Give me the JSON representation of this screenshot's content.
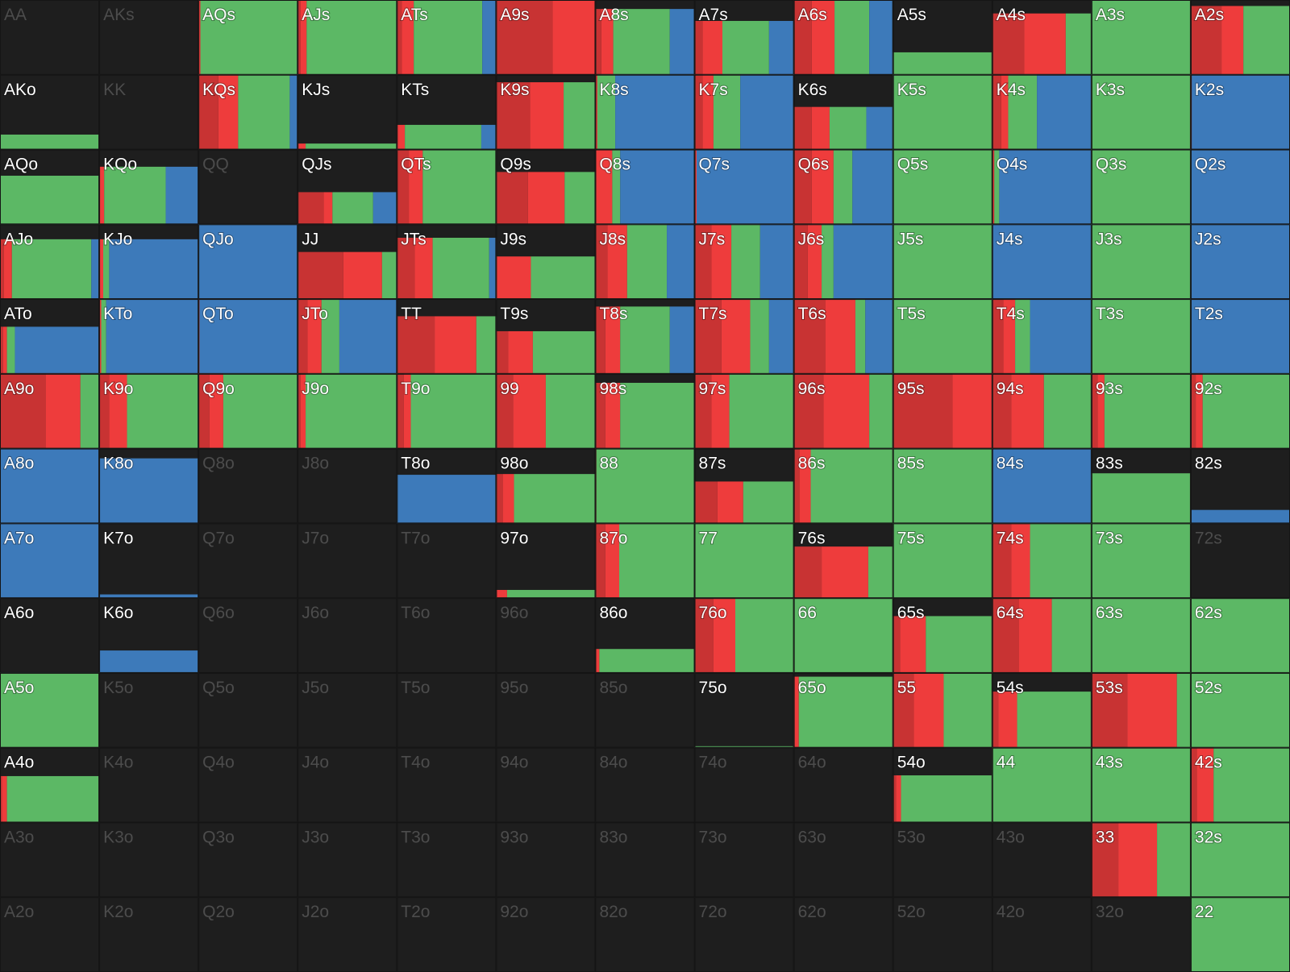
{
  "grid": {
    "colors": [
      "#c83333",
      "#ee3c3c",
      "#5cb865",
      "#3d7aba"
    ],
    "cells": [
      [
        [
          "AA",
          0,
          0,
          0,
          0,
          0
        ],
        [
          "AKs",
          0,
          0,
          0,
          0,
          0
        ],
        [
          "AQs",
          100,
          0,
          2,
          98,
          0
        ],
        [
          "AJs",
          100,
          3,
          6,
          91,
          0
        ],
        [
          "ATs",
          100,
          5,
          12,
          69,
          14
        ],
        [
          "A9s",
          100,
          57,
          43,
          0,
          0
        ],
        [
          "A8s",
          88,
          6,
          12,
          57,
          25
        ],
        [
          "A7s",
          72,
          8,
          20,
          47,
          25
        ],
        [
          "A6s",
          100,
          18,
          23,
          35,
          24
        ],
        [
          "A5s",
          30,
          0,
          0,
          100,
          0
        ],
        [
          "A4s",
          82,
          32,
          42,
          26,
          0
        ],
        [
          "A3s",
          100,
          0,
          0,
          100,
          0
        ],
        [
          "A2s",
          92,
          31,
          22,
          47,
          0
        ]
      ],
      [
        [
          "AKo",
          20,
          0,
          0,
          100,
          0
        ],
        [
          "KK",
          0,
          0,
          0,
          0,
          0
        ],
        [
          "KQs",
          100,
          20,
          20,
          52,
          8
        ],
        [
          "KJs",
          8,
          0,
          8,
          92,
          0
        ],
        [
          "KTs",
          33,
          0,
          8,
          77,
          15
        ],
        [
          "K9s",
          90,
          34,
          34,
          32,
          0
        ],
        [
          "K8s",
          100,
          0,
          2,
          18,
          80
        ],
        [
          "K7s",
          100,
          8,
          11,
          27,
          54
        ],
        [
          "K6s",
          57,
          18,
          18,
          37,
          27
        ],
        [
          "K5s",
          100,
          0,
          0,
          100,
          0
        ],
        [
          "K4s",
          100,
          9,
          7,
          29,
          55
        ],
        [
          "K3s",
          100,
          0,
          0,
          100,
          0
        ],
        [
          "K2s",
          100,
          0,
          1,
          0,
          99
        ]
      ],
      [
        [
          "AQo",
          65,
          0,
          0,
          100,
          0
        ],
        [
          "KQo",
          77,
          0,
          5,
          62,
          33
        ],
        [
          "QQ",
          0,
          0,
          0,
          0,
          0
        ],
        [
          "QJs",
          43,
          26,
          9,
          41,
          24
        ],
        [
          "QTs",
          100,
          12,
          14,
          74,
          0
        ],
        [
          "Q9s",
          70,
          32,
          37,
          31,
          0
        ],
        [
          "Q8s",
          100,
          0,
          17,
          8,
          75
        ],
        [
          "Q7s",
          100,
          0,
          2,
          0,
          98
        ],
        [
          "Q6s",
          100,
          18,
          22,
          19,
          41
        ],
        [
          "Q5s",
          100,
          0,
          0,
          100,
          0
        ],
        [
          "Q4s",
          100,
          0,
          2,
          5,
          93
        ],
        [
          "Q3s",
          100,
          0,
          0,
          100,
          0
        ],
        [
          "Q2s",
          100,
          0,
          0,
          0,
          100
        ]
      ],
      [
        [
          "AJo",
          80,
          4,
          8,
          80,
          8
        ],
        [
          "KJo",
          80,
          0,
          4,
          6,
          90
        ],
        [
          "QJo",
          100,
          0,
          0,
          0,
          100
        ],
        [
          "JJ",
          63,
          46,
          39,
          15,
          0
        ],
        [
          "JTs",
          82,
          18,
          18,
          57,
          7
        ],
        [
          "J9s",
          57,
          0,
          35,
          65,
          0
        ],
        [
          "J8s",
          100,
          12,
          20,
          40,
          28
        ],
        [
          "J7s",
          100,
          17,
          20,
          29,
          34
        ],
        [
          "J6s",
          100,
          14,
          14,
          12,
          60
        ],
        [
          "J5s",
          100,
          0,
          0,
          100,
          0
        ],
        [
          "J4s",
          100,
          0,
          0,
          0,
          100
        ],
        [
          "J3s",
          100,
          0,
          0,
          100,
          0
        ],
        [
          "J2s",
          100,
          0,
          0,
          0,
          100
        ]
      ],
      [
        [
          "ATo",
          63,
          3,
          4,
          8,
          85
        ],
        [
          "KTo",
          100,
          0,
          2,
          5,
          93
        ],
        [
          "QTo",
          100,
          0,
          1,
          0,
          99
        ],
        [
          "JTo",
          100,
          10,
          14,
          18,
          58
        ],
        [
          "TT",
          77,
          38,
          42,
          20,
          0
        ],
        [
          "T9s",
          57,
          12,
          25,
          63,
          0
        ],
        [
          "T8s",
          90,
          10,
          15,
          50,
          25
        ],
        [
          "T7s",
          100,
          27,
          29,
          19,
          25
        ],
        [
          "T6s",
          100,
          32,
          30,
          10,
          28
        ],
        [
          "T5s",
          100,
          0,
          0,
          100,
          0
        ],
        [
          "T4s",
          100,
          11,
          12,
          15,
          62
        ],
        [
          "T3s",
          100,
          0,
          0,
          100,
          0
        ],
        [
          "T2s",
          100,
          0,
          0,
          0,
          100
        ]
      ],
      [
        [
          "A9o",
          100,
          46,
          35,
          19,
          0
        ],
        [
          "K9o",
          100,
          10,
          18,
          72,
          0
        ],
        [
          "Q9o",
          100,
          11,
          14,
          75,
          0
        ],
        [
          "J9o",
          100,
          3,
          5,
          92,
          0
        ],
        [
          "T9o",
          100,
          7,
          7,
          86,
          0
        ],
        [
          "99",
          100,
          17,
          33,
          50,
          0
        ],
        [
          "98s",
          88,
          10,
          15,
          75,
          0
        ],
        [
          "97s",
          100,
          17,
          18,
          65,
          0
        ],
        [
          "96s",
          100,
          30,
          46,
          24,
          0
        ],
        [
          "95s",
          100,
          60,
          40,
          0,
          0
        ],
        [
          "94s",
          100,
          19,
          33,
          48,
          0
        ],
        [
          "93s",
          100,
          6,
          7,
          87,
          0
        ],
        [
          "92s",
          100,
          5,
          7,
          88,
          0
        ]
      ],
      [
        [
          "A8o",
          100,
          0,
          0,
          0,
          100
        ],
        [
          "K8o",
          87,
          0,
          0,
          0,
          100
        ],
        [
          "Q8o",
          0,
          0,
          0,
          0,
          0
        ],
        [
          "J8o",
          0,
          0,
          0,
          0,
          0
        ],
        [
          "T8o",
          65,
          0,
          0,
          0,
          100
        ],
        [
          "98o",
          66,
          7,
          11,
          82,
          0
        ],
        [
          "88",
          100,
          0,
          1,
          99,
          0
        ],
        [
          "87s",
          56,
          23,
          26,
          51,
          0
        ],
        [
          "86s",
          100,
          6,
          11,
          83,
          0
        ],
        [
          "85s",
          100,
          0,
          0,
          100,
          0
        ],
        [
          "84s",
          100,
          0,
          0,
          0,
          100
        ],
        [
          "83s",
          67,
          0,
          0,
          100,
          0
        ],
        [
          "82s",
          18,
          0,
          0,
          0,
          100
        ]
      ],
      [
        [
          "A7o",
          100,
          0,
          0,
          0,
          100
        ],
        [
          "K7o",
          5,
          0,
          0,
          0,
          100
        ],
        [
          "Q7o",
          0,
          0,
          0,
          0,
          0
        ],
        [
          "J7o",
          0,
          0,
          0,
          0,
          0
        ],
        [
          "T7o",
          0,
          0,
          0,
          0,
          0
        ],
        [
          "97o",
          11,
          0,
          11,
          89,
          0
        ],
        [
          "87o",
          100,
          10,
          14,
          76,
          0
        ],
        [
          "77",
          100,
          0,
          0,
          100,
          0
        ],
        [
          "76s",
          69,
          28,
          47,
          25,
          0
        ],
        [
          "75s",
          100,
          0,
          0,
          100,
          0
        ],
        [
          "74s",
          100,
          19,
          19,
          62,
          0
        ],
        [
          "73s",
          100,
          0,
          0,
          100,
          0
        ],
        [
          "72s",
          0,
          0,
          0,
          0,
          0
        ]
      ],
      [
        [
          "A6o",
          1,
          0,
          0,
          0,
          100
        ],
        [
          "K6o",
          30,
          0,
          0,
          0,
          100
        ],
        [
          "Q6o",
          0,
          0,
          0,
          0,
          0
        ],
        [
          "J6o",
          0,
          0,
          0,
          0,
          0
        ],
        [
          "T6o",
          0,
          0,
          0,
          0,
          0
        ],
        [
          "96o",
          0,
          0,
          0,
          0,
          0
        ],
        [
          "86o",
          32,
          0,
          4,
          96,
          0
        ],
        [
          "76o",
          100,
          19,
          22,
          59,
          0
        ],
        [
          "66",
          100,
          0,
          0,
          100,
          0
        ],
        [
          "65s",
          76,
          7,
          26,
          67,
          0
        ],
        [
          "64s",
          100,
          27,
          33,
          40,
          0
        ],
        [
          "63s",
          100,
          0,
          0,
          100,
          0
        ],
        [
          "62s",
          100,
          0,
          0,
          100,
          0
        ]
      ],
      [
        [
          "A5o",
          100,
          0,
          0,
          100,
          0
        ],
        [
          "K5o",
          0,
          0,
          0,
          0,
          0
        ],
        [
          "Q5o",
          0,
          0,
          0,
          0,
          0
        ],
        [
          "J5o",
          0,
          0,
          0,
          0,
          0
        ],
        [
          "T5o",
          0,
          0,
          0,
          0,
          0
        ],
        [
          "95o",
          0,
          0,
          0,
          0,
          0
        ],
        [
          "85o",
          0,
          0,
          0,
          0,
          0
        ],
        [
          "75o",
          2,
          0,
          0,
          100,
          0
        ],
        [
          "65o",
          95,
          0,
          5,
          95,
          0
        ],
        [
          "55",
          100,
          21,
          30,
          49,
          0
        ],
        [
          "54s",
          75,
          6,
          19,
          75,
          0
        ],
        [
          "53s",
          100,
          36,
          50,
          14,
          0
        ],
        [
          "52s",
          100,
          0,
          0,
          100,
          0
        ]
      ],
      [
        [
          "A4o",
          62,
          2,
          5,
          93,
          0
        ],
        [
          "K4o",
          0,
          0,
          0,
          0,
          0
        ],
        [
          "Q4o",
          0,
          0,
          0,
          0,
          0
        ],
        [
          "J4o",
          0,
          0,
          0,
          0,
          0
        ],
        [
          "T4o",
          0,
          0,
          0,
          0,
          0
        ],
        [
          "94o",
          0,
          0,
          0,
          0,
          0
        ],
        [
          "84o",
          0,
          0,
          0,
          0,
          0
        ],
        [
          "74o",
          0,
          0,
          0,
          0,
          0
        ],
        [
          "64o",
          0,
          0,
          0,
          0,
          0
        ],
        [
          "54o",
          63,
          3,
          5,
          92,
          0
        ],
        [
          "44",
          100,
          0,
          0,
          100,
          0
        ],
        [
          "43s",
          100,
          0,
          0,
          100,
          0
        ],
        [
          "42s",
          100,
          6,
          17,
          77,
          0
        ]
      ],
      [
        [
          "A3o",
          0,
          0,
          0,
          0,
          0
        ],
        [
          "K3o",
          0,
          0,
          0,
          0,
          0
        ],
        [
          "Q3o",
          0,
          0,
          0,
          0,
          0
        ],
        [
          "J3o",
          0,
          0,
          0,
          0,
          0
        ],
        [
          "T3o",
          0,
          0,
          0,
          0,
          0
        ],
        [
          "93o",
          0,
          0,
          0,
          0,
          0
        ],
        [
          "83o",
          0,
          0,
          0,
          0,
          0
        ],
        [
          "73o",
          0,
          0,
          0,
          0,
          0
        ],
        [
          "63o",
          0,
          0,
          0,
          0,
          0
        ],
        [
          "53o",
          0,
          0,
          0,
          0,
          0
        ],
        [
          "43o",
          0,
          0,
          0,
          0,
          0
        ],
        [
          "33",
          100,
          27,
          39,
          34,
          0
        ],
        [
          "32s",
          100,
          0,
          0,
          100,
          0
        ]
      ],
      [
        [
          "A2o",
          0,
          0,
          0,
          0,
          0
        ],
        [
          "K2o",
          0,
          0,
          0,
          0,
          0
        ],
        [
          "Q2o",
          0,
          0,
          0,
          0,
          0
        ],
        [
          "J2o",
          0,
          0,
          0,
          0,
          0
        ],
        [
          "T2o",
          0,
          0,
          0,
          0,
          0
        ],
        [
          "92o",
          0,
          0,
          0,
          0,
          0
        ],
        [
          "82o",
          0,
          0,
          0,
          0,
          0
        ],
        [
          "72o",
          0,
          0,
          0,
          0,
          0
        ],
        [
          "62o",
          0,
          0,
          0,
          0,
          0
        ],
        [
          "52o",
          0,
          0,
          0,
          0,
          0
        ],
        [
          "42o",
          0,
          0,
          0,
          0,
          0
        ],
        [
          "32o",
          0,
          0,
          0,
          0,
          0
        ],
        [
          "22",
          100,
          0,
          0,
          100,
          0
        ]
      ]
    ]
  }
}
